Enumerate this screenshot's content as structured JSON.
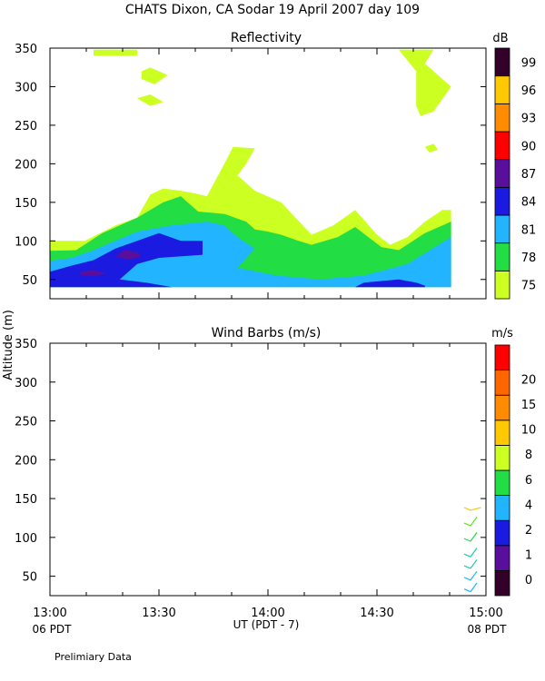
{
  "header": {
    "title": "CHATS Dixon, CA  Sodar  19 April 2007  day 109",
    "ylabel": "Altitude (m)",
    "xlabel": "UT  (PDT - 7)",
    "left_date": "06 PDT",
    "right_date": "08 PDT",
    "footer": "Prelimiary Data"
  },
  "chart_data": [
    {
      "type": "heatmap",
      "title": "Reflectivity",
      "x_ticks": [
        "13:00",
        "13:30",
        "14:00",
        "14:30",
        "15:00"
      ],
      "xlim": [
        "13:00",
        "15:00"
      ],
      "y_ticks": [
        "50",
        "100",
        "150",
        "200",
        "250",
        "300",
        "350"
      ],
      "ylim": [
        25,
        350
      ],
      "grid": false,
      "colorbar": {
        "unit": "dB",
        "labels": [
          "75",
          "78",
          "81",
          "84",
          "87",
          "90",
          "93",
          "96",
          "99"
        ],
        "colors": [
          "#ccff22",
          "#22dd44",
          "#22b4ff",
          "#1a1ae0",
          "#5a0f9c",
          "#ff0000",
          "#ff8c00",
          "#ffc800",
          "#33002a"
        ]
      },
      "regions": [
        {
          "level": "75",
          "color": "#ccff22",
          "points": [
            [
              0,
              100
            ],
            [
              8,
              100
            ],
            [
              15,
              120
            ],
            [
              20,
              130
            ],
            [
              23,
              160
            ],
            [
              26,
              168
            ],
            [
              30,
              165
            ],
            [
              33,
              162
            ],
            [
              36,
              158
            ],
            [
              40,
              200
            ],
            [
              42,
              222
            ],
            [
              47,
              220
            ],
            [
              45,
              200
            ],
            [
              43,
              185
            ],
            [
              47,
              165
            ],
            [
              53,
              150
            ],
            [
              60,
              108
            ],
            [
              65,
              120
            ],
            [
              70,
              140
            ],
            [
              75,
              108
            ],
            [
              78,
              95
            ],
            [
              82,
              105
            ],
            [
              86,
              125
            ],
            [
              90,
              140
            ],
            [
              92,
              140
            ],
            [
              92,
              40
            ],
            [
              0,
              40
            ]
          ]
        },
        {
          "level": "78",
          "color": "#22dd44",
          "points": [
            [
              0,
              87
            ],
            [
              6,
              88
            ],
            [
              12,
              110
            ],
            [
              20,
              130
            ],
            [
              26,
              150
            ],
            [
              30,
              158
            ],
            [
              34,
              138
            ],
            [
              40,
              135
            ],
            [
              45,
              125
            ],
            [
              47,
              115
            ],
            [
              50,
              112
            ],
            [
              53,
              108
            ],
            [
              57,
              100
            ],
            [
              60,
              95
            ],
            [
              66,
              105
            ],
            [
              70,
              118
            ],
            [
              76,
              92
            ],
            [
              80,
              88
            ],
            [
              86,
              110
            ],
            [
              92,
              125
            ],
            [
              92,
              40
            ],
            [
              0,
              40
            ]
          ]
        },
        {
          "level": "81",
          "color": "#22b4ff",
          "points": [
            [
              0,
              74
            ],
            [
              5,
              78
            ],
            [
              10,
              88
            ],
            [
              15,
              100
            ],
            [
              20,
              112
            ],
            [
              28,
              120
            ],
            [
              36,
              125
            ],
            [
              40,
              120
            ],
            [
              43,
              105
            ],
            [
              47,
              90
            ],
            [
              43,
              65
            ],
            [
              52,
              55
            ],
            [
              62,
              50
            ],
            [
              72,
              55
            ],
            [
              82,
              70
            ],
            [
              92,
              105
            ],
            [
              92,
              40
            ],
            [
              0,
              40
            ]
          ]
        },
        {
          "level": "84",
          "color": "#1a1ae0",
          "points": [
            [
              0,
              60
            ],
            [
              5,
              68
            ],
            [
              10,
              75
            ],
            [
              15,
              90
            ],
            [
              20,
              100
            ],
            [
              25,
              110
            ],
            [
              30,
              100
            ],
            [
              35,
              100
            ],
            [
              35,
              82
            ],
            [
              25,
              78
            ],
            [
              20,
              70
            ],
            [
              16,
              50
            ],
            [
              22,
              46
            ],
            [
              28,
              40
            ],
            [
              0,
              40
            ]
          ]
        },
        {
          "level": "84",
          "color": "#1a1ae0",
          "points": [
            [
              70,
              40
            ],
            [
              72,
              46
            ],
            [
              76,
              48
            ],
            [
              80,
              50
            ],
            [
              84,
              46
            ],
            [
              86,
              42
            ],
            [
              86,
              40
            ]
          ]
        },
        {
          "level": "87",
          "color": "#5a0f9c",
          "points": [
            [
              7,
              60
            ],
            [
              10,
              62
            ],
            [
              13,
              58
            ],
            [
              10,
              54
            ],
            [
              7,
              56
            ]
          ]
        },
        {
          "level": "87",
          "color": "#5a0f9c",
          "points": [
            [
              15,
              80
            ],
            [
              17,
              88
            ],
            [
              20,
              86
            ],
            [
              21,
              80
            ],
            [
              18,
              76
            ]
          ]
        },
        {
          "level": "75",
          "color": "#ccff22",
          "points": [
            [
              10,
              348
            ],
            [
              20,
              348
            ],
            [
              20,
              340
            ],
            [
              10,
              340
            ]
          ]
        },
        {
          "level": "75",
          "color": "#ccff22",
          "points": [
            [
              21,
              320
            ],
            [
              23,
              325
            ],
            [
              27,
              315
            ],
            [
              24,
              303
            ],
            [
              21,
              310
            ]
          ]
        },
        {
          "level": "75",
          "color": "#ccff22",
          "points": [
            [
              20,
              285
            ],
            [
              23,
              290
            ],
            [
              26,
              280
            ],
            [
              23,
              275
            ]
          ]
        },
        {
          "level": "75",
          "color": "#ccff22",
          "points": [
            [
              80,
              348
            ],
            [
              88,
              348
            ],
            [
              86,
              330
            ],
            [
              92,
              300
            ],
            [
              88,
              268
            ],
            [
              85,
              262
            ],
            [
              84,
              275
            ],
            [
              84,
              320
            ]
          ]
        },
        {
          "level": "75",
          "color": "#ccff22",
          "points": [
            [
              86,
              222
            ],
            [
              88,
              226
            ],
            [
              89,
              218
            ],
            [
              87,
              215
            ]
          ]
        }
      ]
    },
    {
      "type": "scatter",
      "title": "Wind Barbs (m/s)",
      "x_ticks": [
        "13:00",
        "13:30",
        "14:00",
        "14:30",
        "15:00"
      ],
      "xlim": [
        "13:00",
        "15:00"
      ],
      "y_ticks": [
        "50",
        "100",
        "150",
        "200",
        "250",
        "300",
        "350"
      ],
      "ylim": [
        25,
        350
      ],
      "grid": false,
      "colorbar": {
        "unit": "m/s",
        "labels": [
          "0",
          "1",
          "2",
          "4",
          "6",
          "8",
          "10",
          "15",
          "20"
        ],
        "colors": [
          "#33002a",
          "#5a0f9c",
          "#1a1ae0",
          "#22b4ff",
          "#22dd44",
          "#ccff22",
          "#ffc800",
          "#ff8c00",
          "#ff6600",
          "#ff0000"
        ]
      },
      "barbs": [
        {
          "time": "14:53",
          "altitude": 30,
          "speed": 3,
          "color": "#22b4ff"
        },
        {
          "time": "14:53",
          "altitude": 45,
          "speed": 3,
          "color": "#22b4ff"
        },
        {
          "time": "14:53",
          "altitude": 60,
          "speed": 4,
          "color": "#22c8aa"
        },
        {
          "time": "14:53",
          "altitude": 75,
          "speed": 4,
          "color": "#22c8aa"
        },
        {
          "time": "14:53",
          "altitude": 95,
          "speed": 5,
          "color": "#22dd44"
        },
        {
          "time": "14:53",
          "altitude": 115,
          "speed": 6,
          "color": "#66e022"
        },
        {
          "time": "14:53",
          "altitude": 135,
          "speed": 9,
          "color": "#ffc800"
        }
      ]
    }
  ]
}
